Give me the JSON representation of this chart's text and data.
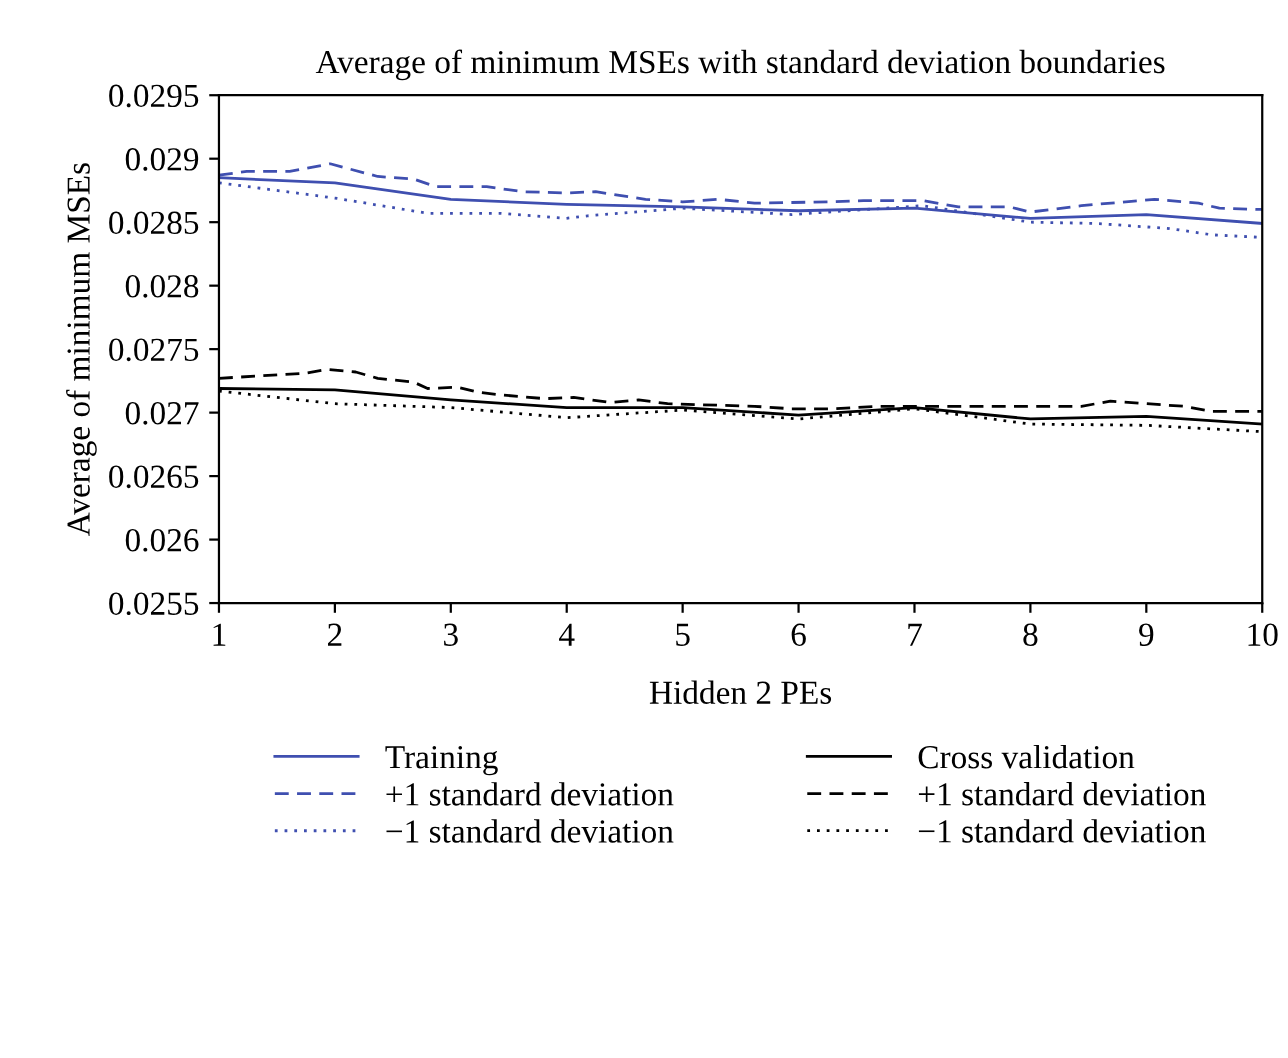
{
  "chart_data": {
    "type": "line",
    "title": "Average of minimum MSEs with standard deviation boundaries",
    "xlabel": "Hidden 2 PEs",
    "ylabel": "Average of minimum MSEs",
    "xlim": [
      1,
      10
    ],
    "xticks": [
      1,
      2,
      3,
      4,
      5,
      6,
      7,
      8,
      9,
      10
    ],
    "ylim": [
      0.0255,
      0.0295
    ],
    "yticks": [
      0.0255,
      0.026,
      0.0265,
      0.027,
      0.0275,
      0.028,
      0.0285,
      0.029,
      0.0295
    ],
    "grid": false,
    "legend": "bottom",
    "marker": "none",
    "series": [
      {
        "name": "Training",
        "color": "#3f4fb0",
        "line_style": "solid",
        "x": [
          1,
          2,
          3,
          4,
          5,
          6,
          7,
          8,
          9,
          10
        ],
        "values": [
          0.02885,
          0.02881,
          0.02868,
          0.02864,
          0.02862,
          0.02859,
          0.02861,
          0.02853,
          0.02856,
          0.02849
        ]
      },
      {
        "name": "Cross validation",
        "color": "#000000",
        "line_style": "solid",
        "x": [
          1,
          2,
          3,
          4,
          5,
          6,
          7,
          8,
          9,
          10
        ],
        "values": [
          0.02719,
          0.02718,
          0.0271,
          0.02704,
          0.02704,
          0.02698,
          0.02704,
          0.02695,
          0.02697,
          0.02691
        ]
      },
      {
        "name": "+1 standard deviation",
        "color": "#3f4fb0",
        "line_style": "dashed",
        "x": [
          1,
          1.24,
          1.61,
          1.96,
          2.37,
          2.68,
          2.87,
          3.31,
          3.62,
          3.99,
          4.25,
          4.68,
          5.0,
          5.31,
          5.62,
          6.25,
          6.56,
          7.07,
          7.38,
          7.82,
          8.0,
          8.44,
          9.07,
          9.45,
          9.63,
          10
        ],
        "values": [
          0.02887,
          0.0289,
          0.0289,
          0.02896,
          0.02886,
          0.02884,
          0.02878,
          0.02878,
          0.02874,
          0.02873,
          0.02874,
          0.02868,
          0.02866,
          0.02868,
          0.02865,
          0.02866,
          0.02867,
          0.02867,
          0.02862,
          0.02862,
          0.02858,
          0.02863,
          0.02868,
          0.02865,
          0.02861,
          0.0286
        ]
      },
      {
        "name": "+1 standard deviation",
        "color": "#000000",
        "line_style": "dashed",
        "x": [
          1,
          1.36,
          1.74,
          1.93,
          2.18,
          2.37,
          2.68,
          2.8,
          3.06,
          3.24,
          3.43,
          3.81,
          4.06,
          4.37,
          4.62,
          4.87,
          5.62,
          5.94,
          6.31,
          6.69,
          8.44,
          8.69,
          9.32,
          9.57,
          10
        ],
        "values": [
          0.02727,
          0.02729,
          0.02731,
          0.02734,
          0.02732,
          0.02727,
          0.02724,
          0.02719,
          0.0272,
          0.02716,
          0.02714,
          0.02711,
          0.02712,
          0.02708,
          0.0271,
          0.02707,
          0.02705,
          0.02703,
          0.02703,
          0.02705,
          0.02705,
          0.02709,
          0.02705,
          0.02701,
          0.02701
        ]
      },
      {
        "name": "−1 standard deviation",
        "color": "#3f4fb0",
        "line_style": "dotted",
        "x": [
          1,
          2,
          2.8,
          3.43,
          3.99,
          4.18,
          5,
          5.94,
          7.07,
          8.0,
          8.57,
          9.2,
          9.57,
          10
        ],
        "values": [
          0.02881,
          0.02869,
          0.02857,
          0.02857,
          0.02853,
          0.02855,
          0.02861,
          0.02856,
          0.02863,
          0.0285,
          0.02849,
          0.02845,
          0.0284,
          0.02838
        ]
      },
      {
        "name": "−1 standard deviation",
        "color": "#000000",
        "line_style": "dotted",
        "x": [
          1,
          2,
          3,
          4,
          5,
          6,
          7,
          8,
          9,
          10
        ],
        "values": [
          0.02717,
          0.02707,
          0.02704,
          0.02696,
          0.02702,
          0.02695,
          0.02703,
          0.02691,
          0.0269,
          0.02685
        ]
      }
    ]
  }
}
